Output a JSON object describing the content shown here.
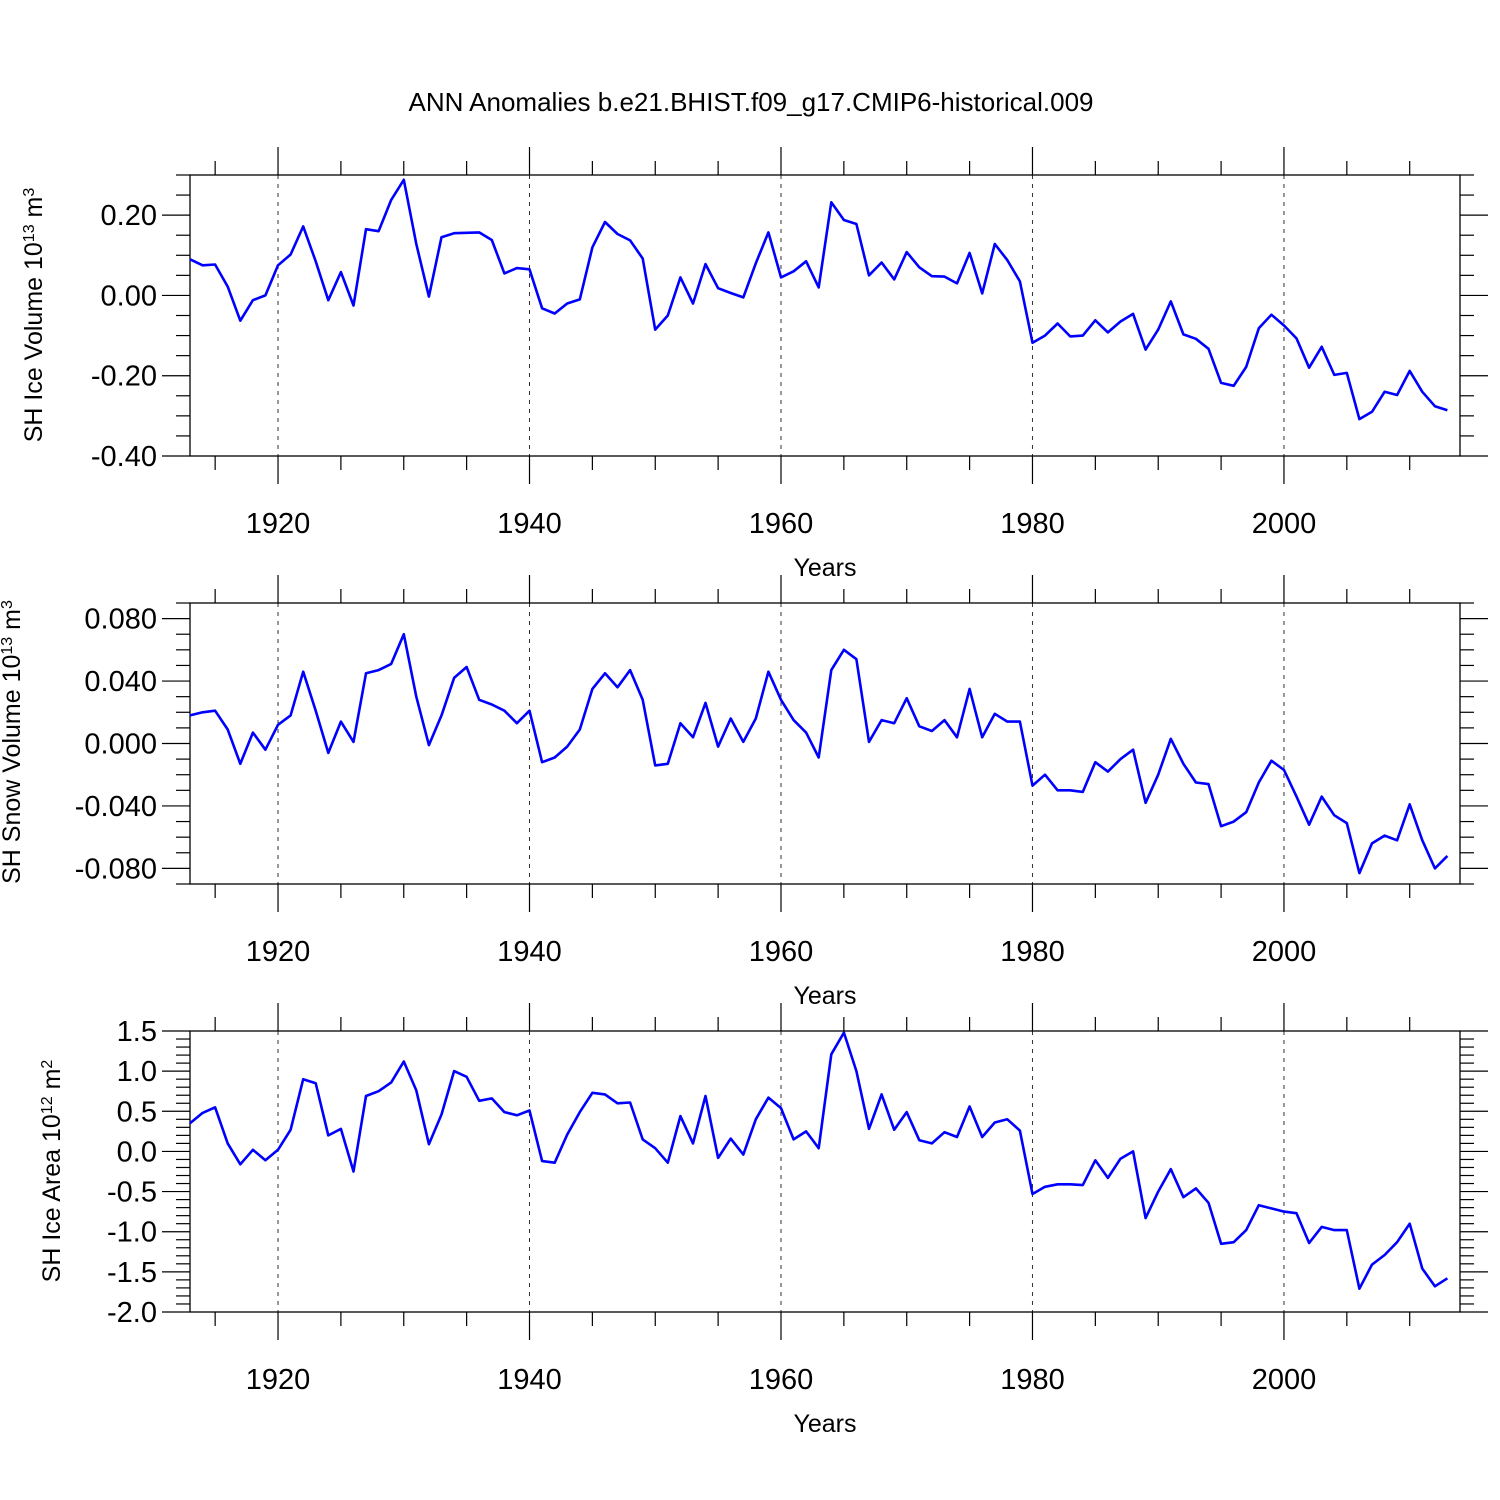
{
  "title": "ANN Anomalies b.e21.BHIST.f09_g17.CMIP6-historical.009",
  "colors": {
    "series": "#0000ff"
  },
  "chart_data": [
    {
      "type": "line",
      "ylabel": "SH Ice Volume 10",
      "ylabel_exp": "13",
      "ylabel_unit": " m",
      "ylabel_unit_exp": "3",
      "xlabel": "Years",
      "xlim": [
        1913,
        2014
      ],
      "ylim": [
        -0.4,
        0.3
      ],
      "yticks": [
        -0.4,
        -0.2,
        0.0,
        0.2
      ],
      "ytick_labels": [
        "-0.40",
        "-0.20",
        "0.00",
        "0.20"
      ],
      "yminor_step": 0.05,
      "xticks": [
        1920,
        1940,
        1960,
        1980,
        2000
      ],
      "xtick_labels": [
        "1920",
        "1940",
        "1960",
        "1980",
        "2000"
      ],
      "grid_x": [
        1920,
        1940,
        1960,
        1980,
        2000
      ],
      "x_start": 1913,
      "values": [
        0.09,
        0.075,
        0.077,
        0.022,
        -0.063,
        -0.012,
        0.0,
        0.075,
        0.102,
        0.172,
        0.085,
        -0.012,
        0.058,
        -0.025,
        0.165,
        0.16,
        0.238,
        0.288,
        0.128,
        -0.003,
        0.145,
        0.155,
        0.156,
        0.157,
        0.138,
        0.055,
        0.068,
        0.065,
        -0.032,
        -0.045,
        -0.02,
        -0.01,
        0.12,
        0.183,
        0.153,
        0.137,
        0.092,
        -0.085,
        -0.05,
        0.045,
        -0.02,
        0.078,
        0.018,
        0.006,
        -0.005,
        0.08,
        0.157,
        0.045,
        0.06,
        0.085,
        0.02,
        0.232,
        0.188,
        0.178,
        0.05,
        0.082,
        0.04,
        0.108,
        0.07,
        0.048,
        0.047,
        0.03,
        0.106,
        0.005,
        0.128,
        0.088,
        0.035,
        -0.118,
        -0.1,
        -0.07,
        -0.102,
        -0.1,
        -0.062,
        -0.092,
        -0.065,
        -0.046,
        -0.135,
        -0.085,
        -0.015,
        -0.097,
        -0.108,
        -0.133,
        -0.218,
        -0.225,
        -0.178,
        -0.082,
        -0.048,
        -0.075,
        -0.107,
        -0.18,
        -0.128,
        -0.198,
        -0.193,
        -0.308,
        -0.29,
        -0.24,
        -0.248,
        -0.188,
        -0.24,
        -0.276,
        -0.286
      ]
    },
    {
      "type": "line",
      "ylabel": "SH Snow Volume 10",
      "ylabel_exp": "13",
      "ylabel_unit": " m",
      "ylabel_unit_exp": "3",
      "xlabel": "Years",
      "xlim": [
        1913,
        2014
      ],
      "ylim": [
        -0.09,
        0.09
      ],
      "yticks": [
        -0.08,
        -0.04,
        0.0,
        0.04,
        0.08
      ],
      "ytick_labels": [
        "-0.080",
        "-0.040",
        "0.000",
        "0.040",
        "0.080"
      ],
      "yminor_step": 0.01,
      "xticks": [
        1920,
        1940,
        1960,
        1980,
        2000
      ],
      "xtick_labels": [
        "1920",
        "1940",
        "1960",
        "1980",
        "2000"
      ],
      "grid_x": [
        1920,
        1940,
        1960,
        1980,
        2000
      ],
      "x_start": 1913,
      "values": [
        0.018,
        0.02,
        0.021,
        0.009,
        -0.013,
        0.007,
        -0.004,
        0.012,
        0.018,
        0.046,
        0.021,
        -0.006,
        0.014,
        0.001,
        0.045,
        0.047,
        0.051,
        0.07,
        0.03,
        -0.001,
        0.018,
        0.042,
        0.049,
        0.028,
        0.025,
        0.021,
        0.013,
        0.021,
        -0.012,
        -0.009,
        -0.002,
        0.009,
        0.035,
        0.045,
        0.036,
        0.047,
        0.028,
        -0.014,
        -0.013,
        0.013,
        0.004,
        0.026,
        -0.002,
        0.016,
        0.001,
        0.016,
        0.046,
        0.028,
        0.015,
        0.007,
        -0.009,
        0.047,
        0.06,
        0.054,
        0.001,
        0.015,
        0.013,
        0.029,
        0.011,
        0.008,
        0.015,
        0.004,
        0.035,
        0.004,
        0.019,
        0.014,
        0.014,
        -0.027,
        -0.02,
        -0.03,
        -0.03,
        -0.031,
        -0.012,
        -0.018,
        -0.01,
        -0.004,
        -0.038,
        -0.02,
        0.003,
        -0.013,
        -0.025,
        -0.026,
        -0.053,
        -0.05,
        -0.044,
        -0.025,
        -0.011,
        -0.017,
        -0.034,
        -0.052,
        -0.034,
        -0.046,
        -0.051,
        -0.083,
        -0.064,
        -0.059,
        -0.062,
        -0.039,
        -0.062,
        -0.08,
        -0.072
      ]
    },
    {
      "type": "line",
      "ylabel": "SH Ice Area 10",
      "ylabel_exp": "12",
      "ylabel_unit": " m",
      "ylabel_unit_exp": "2",
      "xlabel": "Years",
      "xlim": [
        1913,
        2014
      ],
      "ylim": [
        -2.0,
        1.5
      ],
      "yticks": [
        -2.0,
        -1.5,
        -1.0,
        -0.5,
        0.0,
        0.5,
        1.0,
        1.5
      ],
      "ytick_labels": [
        "-2.0",
        "-1.5",
        "-1.0",
        "-0.5",
        "0.0",
        "0.5",
        "1.0",
        "1.5"
      ],
      "yminor_step": 0.1,
      "xticks": [
        1920,
        1940,
        1960,
        1980,
        2000
      ],
      "xtick_labels": [
        "1920",
        "1940",
        "1960",
        "1980",
        "2000"
      ],
      "grid_x": [
        1920,
        1940,
        1960,
        1980,
        2000
      ],
      "x_start": 1913,
      "values": [
        0.35,
        0.48,
        0.55,
        0.1,
        -0.16,
        0.02,
        -0.11,
        0.02,
        0.27,
        0.9,
        0.85,
        0.2,
        0.28,
        -0.25,
        0.69,
        0.75,
        0.86,
        1.12,
        0.76,
        0.09,
        0.46,
        1.0,
        0.93,
        0.63,
        0.66,
        0.49,
        0.45,
        0.51,
        -0.12,
        -0.14,
        0.21,
        0.49,
        0.73,
        0.71,
        0.6,
        0.61,
        0.15,
        0.04,
        -0.14,
        0.44,
        0.1,
        0.69,
        -0.08,
        0.16,
        -0.04,
        0.4,
        0.67,
        0.54,
        0.15,
        0.25,
        0.04,
        1.21,
        1.48,
        1.0,
        0.28,
        0.71,
        0.27,
        0.49,
        0.14,
        0.1,
        0.24,
        0.18,
        0.56,
        0.18,
        0.36,
        0.4,
        0.26,
        -0.53,
        -0.44,
        -0.41,
        -0.41,
        -0.42,
        -0.11,
        -0.33,
        -0.09,
        0.0,
        -0.83,
        -0.5,
        -0.22,
        -0.57,
        -0.46,
        -0.64,
        -1.15,
        -1.13,
        -0.98,
        -0.67,
        -0.71,
        -0.75,
        -0.77,
        -1.14,
        -0.94,
        -0.98,
        -0.98,
        -1.71,
        -1.41,
        -1.29,
        -1.13,
        -0.9,
        -1.46,
        -1.68,
        -1.58
      ]
    }
  ]
}
